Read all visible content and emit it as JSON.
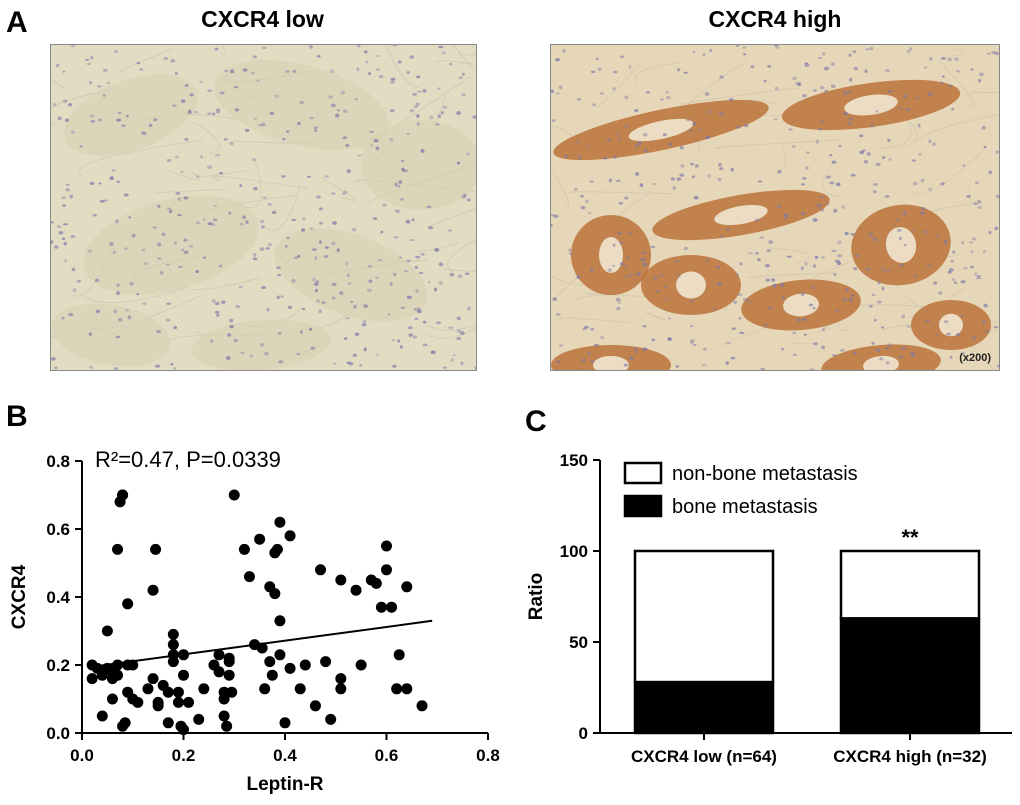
{
  "panels": {
    "a": {
      "letter": "A",
      "left_title": "CXCR4 low",
      "right_title": "CXCR4 high",
      "magnification": "(x200)",
      "left_tissue_color": "#e2dcc3",
      "right_tissue_color": "#e6d7b8",
      "stain_color": "#b5652a",
      "nuclei_color": "#7c78a8"
    },
    "b": {
      "letter": "B",
      "annotation": "R²=0.47, P=0.0339"
    },
    "c": {
      "letter": "C"
    }
  },
  "chart_data": [
    {
      "type": "scatter",
      "xlabel": "Leptin-R",
      "ylabel": "CXCR4",
      "xlim": [
        0.0,
        0.8
      ],
      "ylim": [
        0.0,
        0.8
      ],
      "xticks": [
        "0.0",
        "0.2",
        "0.4",
        "0.6",
        "0.8"
      ],
      "yticks": [
        "0.0",
        "0.2",
        "0.4",
        "0.6",
        "0.8"
      ],
      "regression": {
        "x": [
          0.02,
          0.69
        ],
        "y": [
          0.195,
          0.33
        ]
      },
      "points": [
        [
          0.02,
          0.2
        ],
        [
          0.02,
          0.16
        ],
        [
          0.03,
          0.19
        ],
        [
          0.04,
          0.05
        ],
        [
          0.04,
          0.17
        ],
        [
          0.05,
          0.3
        ],
        [
          0.05,
          0.19
        ],
        [
          0.06,
          0.18
        ],
        [
          0.06,
          0.16
        ],
        [
          0.06,
          0.1
        ],
        [
          0.07,
          0.54
        ],
        [
          0.07,
          0.2
        ],
        [
          0.07,
          0.17
        ],
        [
          0.075,
          0.68
        ],
        [
          0.08,
          0.7
        ],
        [
          0.08,
          0.7
        ],
        [
          0.08,
          0.02
        ],
        [
          0.085,
          0.03
        ],
        [
          0.09,
          0.38
        ],
        [
          0.09,
          0.12
        ],
        [
          0.09,
          0.2
        ],
        [
          0.1,
          0.1
        ],
        [
          0.1,
          0.2
        ],
        [
          0.11,
          0.09
        ],
        [
          0.13,
          0.13
        ],
        [
          0.14,
          0.16
        ],
        [
          0.14,
          0.42
        ],
        [
          0.145,
          0.54
        ],
        [
          0.15,
          0.09
        ],
        [
          0.15,
          0.08
        ],
        [
          0.16,
          0.14
        ],
        [
          0.17,
          0.12
        ],
        [
          0.17,
          0.03
        ],
        [
          0.18,
          0.29
        ],
        [
          0.18,
          0.26
        ],
        [
          0.18,
          0.23
        ],
        [
          0.18,
          0.21
        ],
        [
          0.19,
          0.09
        ],
        [
          0.19,
          0.12
        ],
        [
          0.195,
          0.02
        ],
        [
          0.2,
          0.01
        ],
        [
          0.2,
          0.23
        ],
        [
          0.2,
          0.17
        ],
        [
          0.21,
          0.09
        ],
        [
          0.23,
          0.04
        ],
        [
          0.24,
          0.13
        ],
        [
          0.26,
          0.2
        ],
        [
          0.27,
          0.23
        ],
        [
          0.27,
          0.18
        ],
        [
          0.28,
          0.12
        ],
        [
          0.28,
          0.1
        ],
        [
          0.28,
          0.05
        ],
        [
          0.285,
          0.02
        ],
        [
          0.29,
          0.21
        ],
        [
          0.29,
          0.17
        ],
        [
          0.29,
          0.22
        ],
        [
          0.295,
          0.12
        ],
        [
          0.3,
          0.7
        ],
        [
          0.32,
          0.54
        ],
        [
          0.33,
          0.46
        ],
        [
          0.34,
          0.26
        ],
        [
          0.35,
          0.57
        ],
        [
          0.355,
          0.25
        ],
        [
          0.36,
          0.13
        ],
        [
          0.37,
          0.43
        ],
        [
          0.37,
          0.21
        ],
        [
          0.375,
          0.17
        ],
        [
          0.38,
          0.53
        ],
        [
          0.38,
          0.41
        ],
        [
          0.385,
          0.54
        ],
        [
          0.39,
          0.33
        ],
        [
          0.39,
          0.62
        ],
        [
          0.39,
          0.23
        ],
        [
          0.4,
          0.03
        ],
        [
          0.41,
          0.58
        ],
        [
          0.41,
          0.19
        ],
        [
          0.43,
          0.13
        ],
        [
          0.44,
          0.2
        ],
        [
          0.46,
          0.08
        ],
        [
          0.47,
          0.48
        ],
        [
          0.48,
          0.21
        ],
        [
          0.49,
          0.04
        ],
        [
          0.51,
          0.45
        ],
        [
          0.51,
          0.16
        ],
        [
          0.51,
          0.13
        ],
        [
          0.54,
          0.42
        ],
        [
          0.55,
          0.2
        ],
        [
          0.57,
          0.45
        ],
        [
          0.58,
          0.44
        ],
        [
          0.59,
          0.37
        ],
        [
          0.6,
          0.55
        ],
        [
          0.6,
          0.48
        ],
        [
          0.61,
          0.37
        ],
        [
          0.62,
          0.13
        ],
        [
          0.625,
          0.23
        ],
        [
          0.64,
          0.13
        ],
        [
          0.64,
          0.43
        ],
        [
          0.67,
          0.08
        ]
      ]
    },
    {
      "type": "bar",
      "stacked": true,
      "ylabel": "Ratio",
      "ylim": [
        0,
        150
      ],
      "yticks": [
        "0",
        "50",
        "100",
        "150"
      ],
      "categories": [
        "CXCR4 low (n=64)",
        "CXCR4 high (n=32)"
      ],
      "series": [
        {
          "name": "bone metastasis",
          "color": "#000000",
          "values": [
            28,
            63
          ]
        },
        {
          "name": "non-bone metastasis",
          "color": "#ffffff",
          "values": [
            72,
            37
          ]
        }
      ],
      "annotations": [
        {
          "category": 1,
          "text": "**"
        }
      ],
      "legend": "top-left"
    }
  ]
}
